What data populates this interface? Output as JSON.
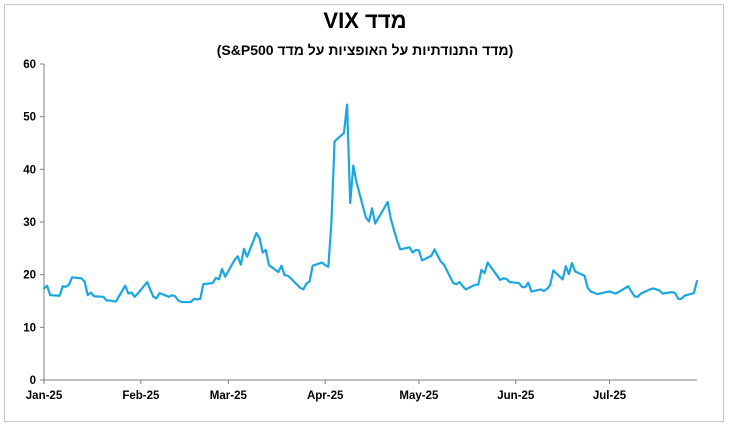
{
  "chart_data": {
    "type": "line",
    "title": "מדד VIX",
    "subtitle": "(מדד התנודתיות על האופציות על מדד S&P500)",
    "xlabel": "",
    "ylabel": "",
    "ylim": [
      0,
      60
    ],
    "yticks": [
      0,
      10,
      20,
      30,
      40,
      50,
      60
    ],
    "xlim": [
      "2025-01-01",
      "2025-07-29"
    ],
    "xticks": [
      {
        "date": "2025-01-01",
        "label": "Jan-25"
      },
      {
        "date": "2025-02-01",
        "label": "Feb-25"
      },
      {
        "date": "2025-03-01",
        "label": "Mar-25"
      },
      {
        "date": "2025-04-01",
        "label": "Apr-25"
      },
      {
        "date": "2025-05-01",
        "label": "May-25"
      },
      {
        "date": "2025-06-01",
        "label": "Jun-25"
      },
      {
        "date": "2025-07-01",
        "label": "Jul-25"
      }
    ],
    "grid": false,
    "legend": "none",
    "series": [
      {
        "color": "#1aa7e0",
        "points": [
          [
            "2025-01-01",
            17.4
          ],
          [
            "2025-01-02",
            17.9
          ],
          [
            "2025-01-03",
            16.1
          ],
          [
            "2025-01-06",
            16.0
          ],
          [
            "2025-01-07",
            17.8
          ],
          [
            "2025-01-08",
            17.7
          ],
          [
            "2025-01-09",
            18.1
          ],
          [
            "2025-01-10",
            19.5
          ],
          [
            "2025-01-13",
            19.3
          ],
          [
            "2025-01-14",
            18.7
          ],
          [
            "2025-01-15",
            16.1
          ],
          [
            "2025-01-16",
            16.6
          ],
          [
            "2025-01-17",
            15.9
          ],
          [
            "2025-01-20",
            15.8
          ],
          [
            "2025-01-21",
            15.1
          ],
          [
            "2025-01-22",
            15.1
          ],
          [
            "2025-01-23",
            15.0
          ],
          [
            "2025-01-24",
            14.9
          ],
          [
            "2025-01-27",
            17.9
          ],
          [
            "2025-01-28",
            16.4
          ],
          [
            "2025-01-29",
            16.6
          ],
          [
            "2025-01-30",
            15.8
          ],
          [
            "2025-01-31",
            16.4
          ],
          [
            "2025-02-03",
            18.6
          ],
          [
            "2025-02-04",
            17.2
          ],
          [
            "2025-02-05",
            15.8
          ],
          [
            "2025-02-06",
            15.5
          ],
          [
            "2025-02-07",
            16.5
          ],
          [
            "2025-02-10",
            15.8
          ],
          [
            "2025-02-11",
            16.1
          ],
          [
            "2025-02-12",
            15.9
          ],
          [
            "2025-02-13",
            15.1
          ],
          [
            "2025-02-14",
            14.8
          ],
          [
            "2025-02-17",
            14.8
          ],
          [
            "2025-02-18",
            15.4
          ],
          [
            "2025-02-19",
            15.3
          ],
          [
            "2025-02-20",
            15.4
          ],
          [
            "2025-02-21",
            18.2
          ],
          [
            "2025-02-24",
            18.4
          ],
          [
            "2025-02-25",
            19.4
          ],
          [
            "2025-02-26",
            19.1
          ],
          [
            "2025-02-27",
            21.1
          ],
          [
            "2025-02-28",
            19.6
          ],
          [
            "2025-03-03",
            22.8
          ],
          [
            "2025-03-04",
            23.5
          ],
          [
            "2025-03-05",
            21.9
          ],
          [
            "2025-03-06",
            24.9
          ],
          [
            "2025-03-07",
            23.4
          ],
          [
            "2025-03-10",
            27.9
          ],
          [
            "2025-03-11",
            26.9
          ],
          [
            "2025-03-12",
            24.2
          ],
          [
            "2025-03-13",
            24.7
          ],
          [
            "2025-03-14",
            21.8
          ],
          [
            "2025-03-17",
            20.5
          ],
          [
            "2025-03-18",
            21.7
          ],
          [
            "2025-03-19",
            19.9
          ],
          [
            "2025-03-20",
            19.8
          ],
          [
            "2025-03-21",
            19.3
          ],
          [
            "2025-03-24",
            17.5
          ],
          [
            "2025-03-25",
            17.2
          ],
          [
            "2025-03-26",
            18.3
          ],
          [
            "2025-03-27",
            18.7
          ],
          [
            "2025-03-28",
            21.7
          ],
          [
            "2025-03-31",
            22.3
          ],
          [
            "2025-04-01",
            21.8
          ],
          [
            "2025-04-02",
            21.5
          ],
          [
            "2025-04-03",
            30.0
          ],
          [
            "2025-04-04",
            45.3
          ],
          [
            "2025-04-07",
            46.9
          ],
          [
            "2025-04-08",
            52.3
          ],
          [
            "2025-04-09",
            33.6
          ],
          [
            "2025-04-10",
            40.7
          ],
          [
            "2025-04-11",
            37.6
          ],
          [
            "2025-04-14",
            30.9
          ],
          [
            "2025-04-15",
            30.1
          ],
          [
            "2025-04-16",
            32.6
          ],
          [
            "2025-04-17",
            29.7
          ],
          [
            "2025-04-21",
            33.8
          ],
          [
            "2025-04-22",
            30.6
          ],
          [
            "2025-04-23",
            28.5
          ],
          [
            "2025-04-24",
            26.5
          ],
          [
            "2025-04-25",
            24.8
          ],
          [
            "2025-04-28",
            25.2
          ],
          [
            "2025-04-29",
            24.2
          ],
          [
            "2025-04-30",
            24.7
          ],
          [
            "2025-05-01",
            24.6
          ],
          [
            "2025-05-02",
            22.7
          ],
          [
            "2025-05-05",
            23.6
          ],
          [
            "2025-05-06",
            24.8
          ],
          [
            "2025-05-07",
            23.6
          ],
          [
            "2025-05-08",
            22.5
          ],
          [
            "2025-05-09",
            21.9
          ],
          [
            "2025-05-12",
            18.4
          ],
          [
            "2025-05-13",
            18.2
          ],
          [
            "2025-05-14",
            18.6
          ],
          [
            "2025-05-15",
            17.8
          ],
          [
            "2025-05-16",
            17.2
          ],
          [
            "2025-05-19",
            18.1
          ],
          [
            "2025-05-20",
            18.1
          ],
          [
            "2025-05-21",
            20.9
          ],
          [
            "2025-05-22",
            20.3
          ],
          [
            "2025-05-23",
            22.3
          ],
          [
            "2025-05-27",
            19.0
          ],
          [
            "2025-05-28",
            19.3
          ],
          [
            "2025-05-29",
            19.2
          ],
          [
            "2025-05-30",
            18.6
          ],
          [
            "2025-06-02",
            18.4
          ],
          [
            "2025-06-03",
            17.7
          ],
          [
            "2025-06-04",
            17.6
          ],
          [
            "2025-06-05",
            18.5
          ],
          [
            "2025-06-06",
            16.8
          ],
          [
            "2025-06-09",
            17.2
          ],
          [
            "2025-06-10",
            16.9
          ],
          [
            "2025-06-11",
            17.3
          ],
          [
            "2025-06-12",
            18.0
          ],
          [
            "2025-06-13",
            20.8
          ],
          [
            "2025-06-16",
            19.1
          ],
          [
            "2025-06-17",
            21.6
          ],
          [
            "2025-06-18",
            20.1
          ],
          [
            "2025-06-19",
            22.2
          ],
          [
            "2025-06-20",
            20.6
          ],
          [
            "2025-06-23",
            19.8
          ],
          [
            "2025-06-24",
            17.5
          ],
          [
            "2025-06-25",
            16.8
          ],
          [
            "2025-06-26",
            16.6
          ],
          [
            "2025-06-27",
            16.3
          ],
          [
            "2025-06-30",
            16.7
          ],
          [
            "2025-07-01",
            16.8
          ],
          [
            "2025-07-02",
            16.6
          ],
          [
            "2025-07-03",
            16.4
          ],
          [
            "2025-07-07",
            17.8
          ],
          [
            "2025-07-08",
            16.8
          ],
          [
            "2025-07-09",
            15.9
          ],
          [
            "2025-07-10",
            15.8
          ],
          [
            "2025-07-11",
            16.4
          ],
          [
            "2025-07-14",
            17.2
          ],
          [
            "2025-07-15",
            17.4
          ],
          [
            "2025-07-16",
            17.2
          ],
          [
            "2025-07-17",
            17.0
          ],
          [
            "2025-07-18",
            16.4
          ],
          [
            "2025-07-21",
            16.7
          ],
          [
            "2025-07-22",
            16.5
          ],
          [
            "2025-07-23",
            15.4
          ],
          [
            "2025-07-24",
            15.4
          ],
          [
            "2025-07-25",
            16.0
          ],
          [
            "2025-07-28",
            16.5
          ],
          [
            "2025-07-29",
            18.8
          ]
        ]
      }
    ]
  }
}
